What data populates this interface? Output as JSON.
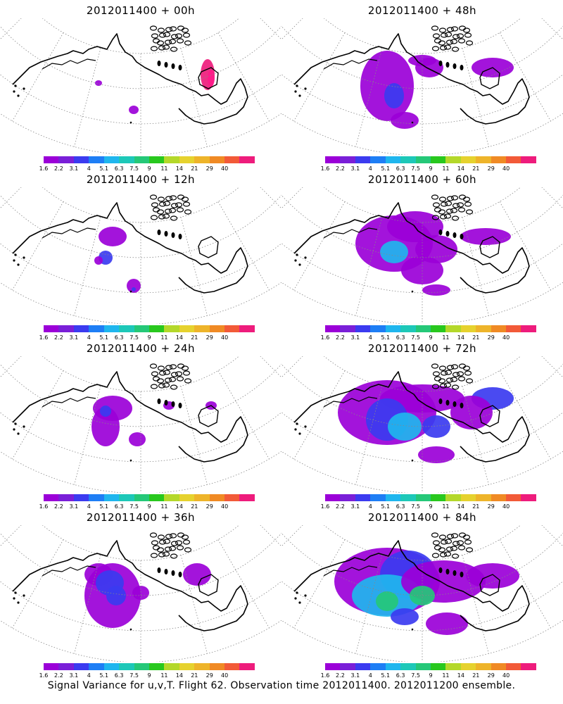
{
  "panels": [
    {
      "title": "2012011400 + 00h"
    },
    {
      "title": "2012011400 + 48h"
    },
    {
      "title": "2012011400 + 12h"
    },
    {
      "title": "2012011400 + 60h"
    },
    {
      "title": "2012011400 + 24h"
    },
    {
      "title": "2012011400 + 72h"
    },
    {
      "title": "2012011400 + 36h"
    },
    {
      "title": "2012011400 + 84h"
    }
  ],
  "colorbar": {
    "labels": [
      "1.6",
      "2.2",
      "3.1",
      "4",
      "5.1",
      "6.3",
      "7.5",
      "9",
      "11",
      "14",
      "21",
      "29",
      "40"
    ],
    "colors": [
      "#9b00d8",
      "#7a1fd8",
      "#3b3bf0",
      "#1e7ef5",
      "#1fb6ee",
      "#1dc8b8",
      "#25c878",
      "#28c81e",
      "#b4d82a",
      "#e6d22e",
      "#eeb42a",
      "#f08a24",
      "#f25a38",
      "#ee1c7c"
    ]
  },
  "footer": "Signal Variance for u,v,T. Flight 62. Observation time 2012011400. 2012011200 ensemble."
}
